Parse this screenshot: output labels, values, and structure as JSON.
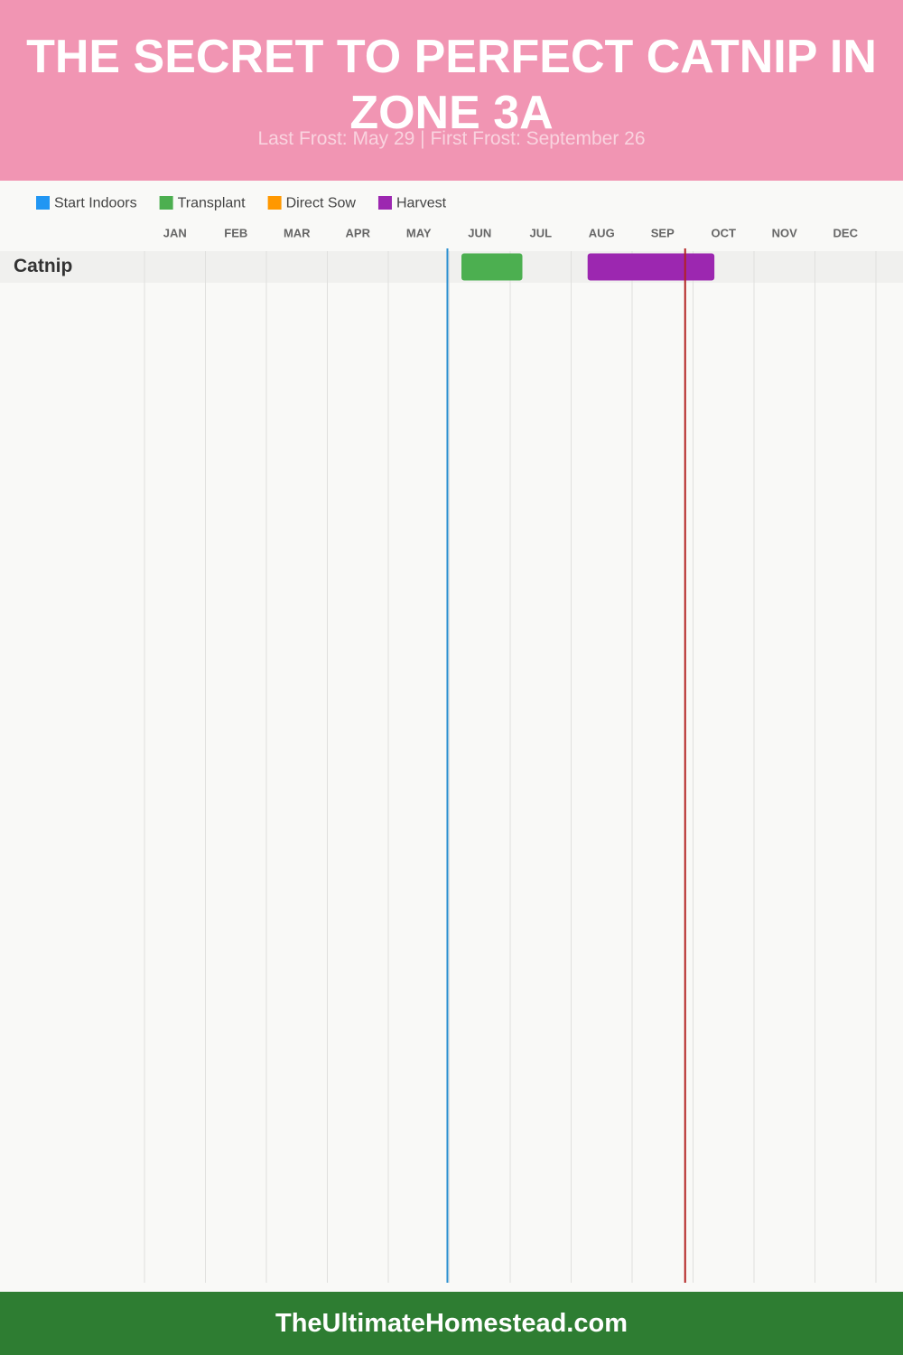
{
  "chart_data": {
    "type": "gantt",
    "title": "THE SECRET TO PERFECT CATNIP IN ZONE 3A",
    "subtitle": "Last Frost: May 29 | First Frost: September 26",
    "categories": [
      "Catnip"
    ],
    "xlim": [
      0,
      12
    ],
    "xticks": [
      {
        "value": 0.5,
        "label": "JAN"
      },
      {
        "value": 1.5,
        "label": "FEB"
      },
      {
        "value": 2.5,
        "label": "MAR"
      },
      {
        "value": 3.5,
        "label": "APR"
      },
      {
        "value": 4.5,
        "label": "MAY"
      },
      {
        "value": 5.5,
        "label": "JUN"
      },
      {
        "value": 6.5,
        "label": "JUL"
      },
      {
        "value": 7.5,
        "label": "AUG"
      },
      {
        "value": 8.5,
        "label": "SEP"
      },
      {
        "value": 9.5,
        "label": "OCT"
      },
      {
        "value": 10.5,
        "label": "NOV"
      },
      {
        "value": 11.5,
        "label": "DEC"
      }
    ],
    "series": [
      {
        "name": "Start Indoors",
        "color": "#2196f3",
        "values": [
          null
        ]
      },
      {
        "name": "Transplant",
        "color": "#4caf50",
        "values": [
          [
            5.2,
            6.2
          ]
        ]
      },
      {
        "name": "Direct Sow",
        "color": "#ff9800",
        "values": [
          null
        ]
      },
      {
        "name": "Harvest",
        "color": "#9c27b0",
        "values": [
          [
            7.27,
            9.35
          ]
        ]
      }
    ],
    "markers": [
      {
        "value": 4.97,
        "color": "#2a8fd0"
      },
      {
        "value": 8.87,
        "color": "#b22222"
      }
    ]
  },
  "footer": "TheUltimateHomestead.com"
}
